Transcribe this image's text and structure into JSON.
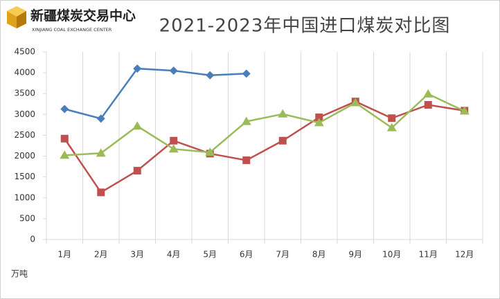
{
  "logo": {
    "name": "新疆煤炭交易中心",
    "english": "XINJIANG COAL EXCHANGE CENTER"
  },
  "chart_data": {
    "type": "line",
    "title": "2021-2023年中国进口煤炭对比图",
    "y_label": "万吨",
    "categories": [
      "1月",
      "2月",
      "3月",
      "4月",
      "5月",
      "6月",
      "7月",
      "8月",
      "9月",
      "10月",
      "11月",
      "12月"
    ],
    "series": [
      {
        "color": "#4a7ebb",
        "marker": "diamond",
        "values": [
          3130,
          2900,
          4100,
          4050,
          3940,
          3980,
          null,
          null,
          null,
          null,
          null,
          null
        ]
      },
      {
        "color": "#c0504d",
        "marker": "square",
        "values": [
          2420,
          1130,
          1650,
          2370,
          2060,
          1900,
          2370,
          2930,
          3310,
          2910,
          3230,
          3090
        ]
      },
      {
        "color": "#9bbb59",
        "marker": "triangle",
        "values": [
          2020,
          2070,
          2720,
          2170,
          2090,
          2830,
          3010,
          2800,
          3280,
          2680,
          3490,
          3080
        ]
      }
    ],
    "ylim": [
      0,
      4500
    ],
    "yticks": [
      0,
      500,
      1000,
      1500,
      2000,
      2500,
      3000,
      3500,
      4000,
      4500
    ],
    "grid": false
  }
}
